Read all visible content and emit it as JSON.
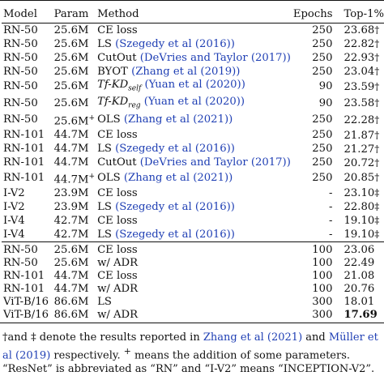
{
  "header": {
    "model": "Model",
    "param": "Param",
    "method": "Method",
    "epochs": "Epochs",
    "top1": "Top-1%"
  },
  "group1": [
    {
      "model": "RN-50",
      "param": "25.6M",
      "method": "CE loss",
      "cite": "",
      "epochs": "250",
      "top1": "23.68",
      "mark": "†"
    },
    {
      "model": "RN-50",
      "param": "25.6M",
      "method": "LS",
      "cite": "(Szegedy et al (2016))",
      "epochs": "250",
      "top1": "22.82",
      "mark": "†"
    },
    {
      "model": "RN-50",
      "param": "25.6M",
      "method": "CutOut",
      "cite": "(DeVries and Taylor (2017))",
      "epochs": "250",
      "top1": "22.93",
      "mark": "†"
    },
    {
      "model": "RN-50",
      "param": "25.6M",
      "method": "BYOT",
      "cite": "(Zhang et al (2019))",
      "epochs": "250",
      "top1": "23.04",
      "mark": "†"
    },
    {
      "model": "RN-50",
      "param": "25.6M",
      "method": "Tf-KD_self",
      "cite": "(Yuan et al (2020))",
      "epochs": "90",
      "top1": "23.59",
      "mark": "†"
    },
    {
      "model": "RN-50",
      "param": "25.6M",
      "method": "Tf-KD_reg",
      "cite": "(Yuan et al (2020))",
      "epochs": "90",
      "top1": "23.58",
      "mark": "†"
    },
    {
      "model": "RN-50",
      "param": "25.6M+",
      "method": "OLS",
      "cite": "(Zhang et al (2021))",
      "epochs": "250",
      "top1": "22.28",
      "mark": "†"
    },
    {
      "model": "RN-101",
      "param": "44.7M",
      "method": "CE loss",
      "cite": "",
      "epochs": "250",
      "top1": "21.87",
      "mark": "†"
    },
    {
      "model": "RN-101",
      "param": "44.7M",
      "method": "LS",
      "cite": "(Szegedy et al (2016))",
      "epochs": "250",
      "top1": "21.27",
      "mark": "†"
    },
    {
      "model": "RN-101",
      "param": "44.7M",
      "method": "CutOut",
      "cite": "(DeVries and Taylor (2017))",
      "epochs": "250",
      "top1": "20.72",
      "mark": "†"
    },
    {
      "model": "RN-101",
      "param": "44.7M+",
      "method": "OLS",
      "cite": "(Zhang et al (2021))",
      "epochs": "250",
      "top1": "20.85",
      "mark": "†"
    },
    {
      "model": "I-V2",
      "param": "23.9M",
      "method": "CE loss",
      "cite": "",
      "epochs": "-",
      "top1": "23.10",
      "mark": "‡"
    },
    {
      "model": "I-V2",
      "param": "23.9M",
      "method": "LS",
      "cite": "(Szegedy et al (2016))",
      "epochs": "-",
      "top1": "22.80",
      "mark": "‡"
    },
    {
      "model": "I-V4",
      "param": "42.7M",
      "method": "CE loss",
      "cite": "",
      "epochs": "-",
      "top1": "19.10",
      "mark": "‡"
    },
    {
      "model": "I-V4",
      "param": "42.7M",
      "method": "LS",
      "cite": "(Szegedy et al (2016))",
      "epochs": "-",
      "top1": "19.10",
      "mark": "‡"
    }
  ],
  "group2": [
    {
      "model": "RN-50",
      "param": "25.6M",
      "method": "CE loss",
      "epochs": "100",
      "top1": "23.06"
    },
    {
      "model": "RN-50",
      "param": "25.6M",
      "method": "w/ ADR",
      "epochs": "100",
      "top1": "22.49"
    },
    {
      "model": "RN-101",
      "param": "44.7M",
      "method": "CE loss",
      "epochs": "100",
      "top1": "21.08"
    },
    {
      "model": "RN-101",
      "param": "44.7M",
      "method": "w/ ADR",
      "epochs": "100",
      "top1": "20.76"
    },
    {
      "model": "ViT-B/16",
      "param": "86.6M",
      "method": "LS",
      "epochs": "300",
      "top1": "18.01"
    },
    {
      "model": "ViT-B/16",
      "param": "86.6M",
      "method": "w/ ADR",
      "epochs": "300",
      "top1": "17.69"
    }
  ],
  "note": {
    "p1": "†and ‡ denote the results reported in ",
    "c1": "Zhang et al (2021)",
    "p2": " and ",
    "c2": "Müller et al (2019)",
    "p3": " respectively. ",
    "plus": "+",
    "p4": " means the addition of some parameters. “ResNet” is abbreviated as “RN” and “I-V2” means “INCEPTION-V2”."
  }
}
